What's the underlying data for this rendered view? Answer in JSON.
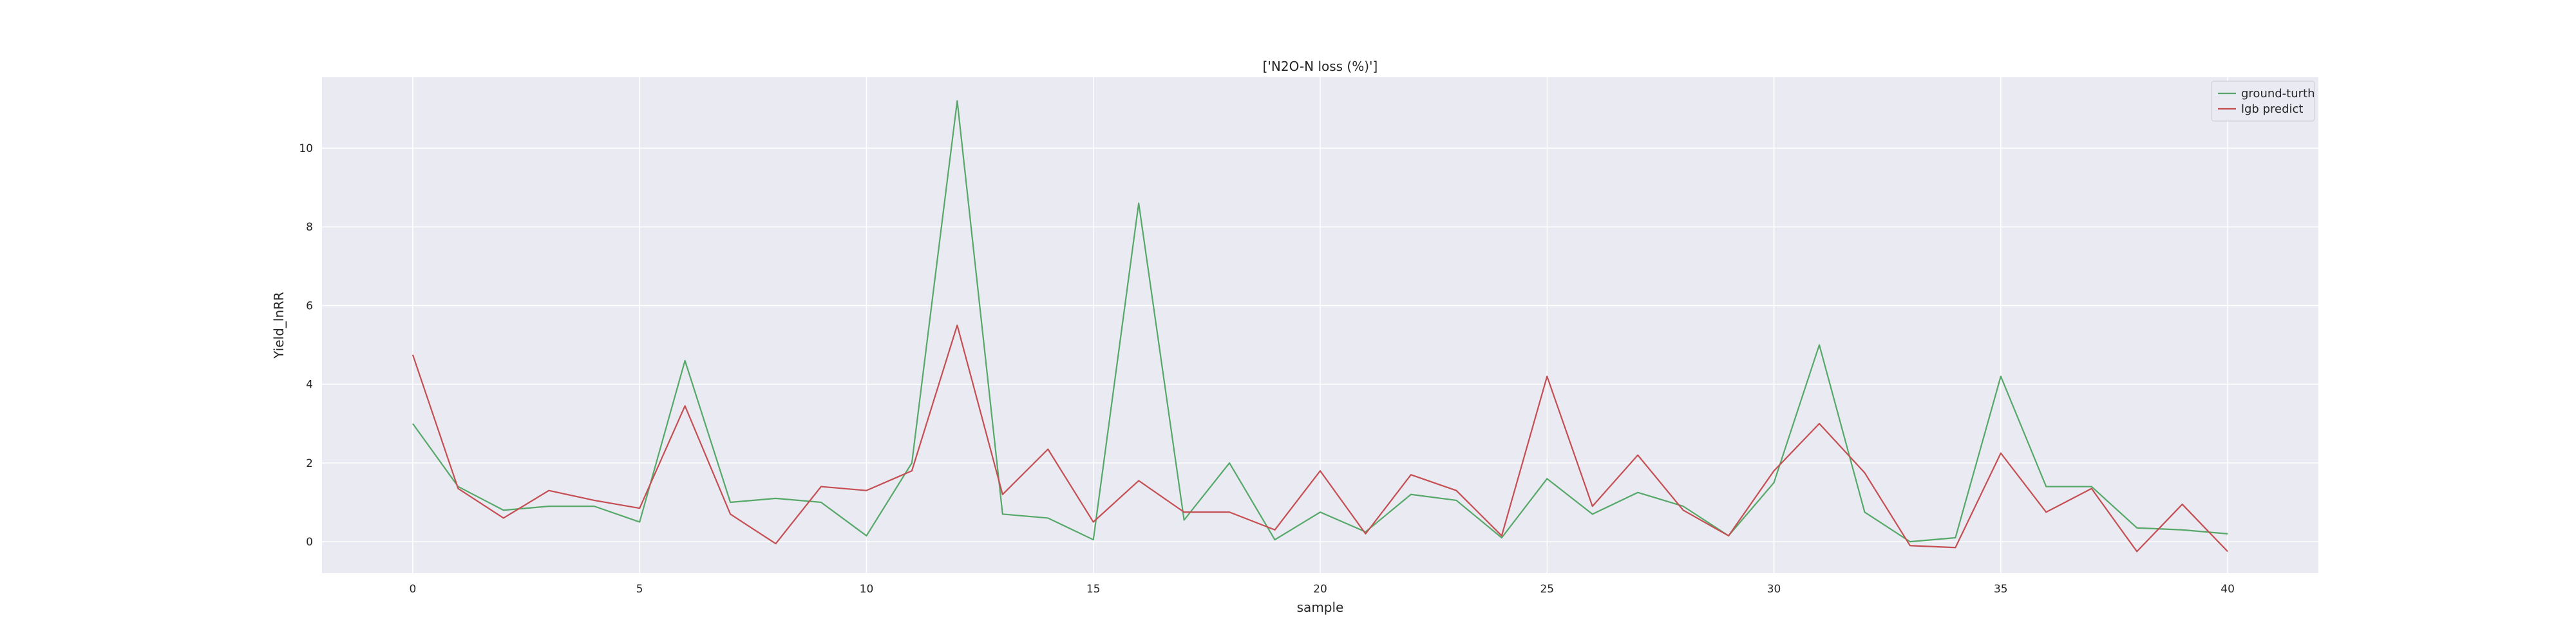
{
  "chart_data": {
    "type": "line",
    "title": "['N2O-N loss (%)']",
    "xlabel": "sample",
    "ylabel": "Yield_lnRR",
    "xlim": [
      -2,
      42
    ],
    "ylim": [
      -0.8,
      11.8
    ],
    "xticks": [
      0,
      5,
      10,
      15,
      20,
      25,
      30,
      35,
      40
    ],
    "yticks": [
      0,
      2,
      4,
      6,
      8,
      10
    ],
    "grid": true,
    "legend_position": "top-right",
    "x": [
      0,
      1,
      2,
      3,
      4,
      5,
      6,
      7,
      8,
      9,
      10,
      11,
      12,
      13,
      14,
      15,
      16,
      17,
      18,
      19,
      20,
      21,
      22,
      23,
      24,
      25,
      26,
      27,
      28,
      29,
      30,
      31,
      32,
      33,
      34,
      35,
      36,
      37,
      38,
      39,
      40
    ],
    "series": [
      {
        "name": "ground-turth",
        "color": "#55a868",
        "values": [
          3.0,
          1.4,
          0.8,
          0.9,
          0.9,
          0.5,
          4.6,
          1.0,
          1.1,
          1.0,
          0.15,
          2.0,
          11.2,
          0.7,
          0.6,
          0.05,
          8.6,
          0.55,
          2.0,
          0.05,
          0.75,
          0.25,
          1.2,
          1.05,
          0.1,
          1.6,
          0.7,
          1.25,
          0.9,
          0.15,
          1.5,
          5.0,
          0.75,
          0.0,
          0.1,
          4.2,
          1.4,
          1.4,
          0.35,
          0.3,
          0.2
        ]
      },
      {
        "name": "lgb predict",
        "color": "#c44e52",
        "values": [
          4.75,
          1.35,
          0.6,
          1.3,
          1.05,
          0.85,
          3.45,
          0.7,
          -0.05,
          1.4,
          1.3,
          1.8,
          5.5,
          1.2,
          2.35,
          0.5,
          1.55,
          0.75,
          0.75,
          0.3,
          1.8,
          0.2,
          1.7,
          1.3,
          0.15,
          4.2,
          0.9,
          2.2,
          0.8,
          0.15,
          1.8,
          3.0,
          1.75,
          -0.1,
          -0.15,
          2.25,
          0.75,
          1.35,
          -0.25,
          0.95,
          -0.25
        ]
      }
    ]
  }
}
